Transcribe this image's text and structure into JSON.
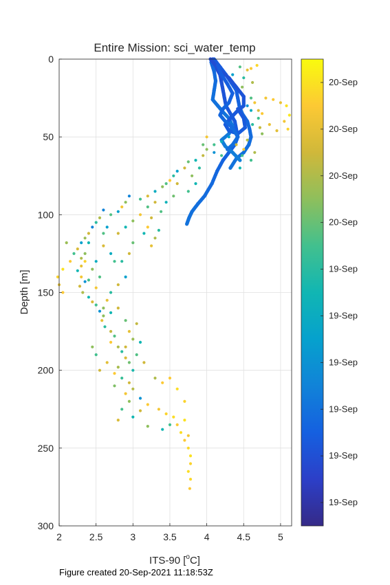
{
  "figure_footer": "Figure created 20-Sep-2021 11:18:53Z",
  "chart_data": {
    "type": "scatter",
    "title": "Entire Mission: sci_water_temp",
    "xlabel": "ITS-90 [",
    "xlabel_sup": "o",
    "xlabel_suffix": "C]",
    "ylabel": "Depth [m]",
    "xlim": [
      2,
      5.15
    ],
    "ylim": [
      300,
      0
    ],
    "y_reversed": true,
    "x_ticks": [
      2,
      2.5,
      3,
      3.5,
      4,
      4.5,
      5
    ],
    "x_tick_labels": [
      "2",
      "2.5",
      "3",
      "3.5",
      "4",
      "4.5",
      "5"
    ],
    "y_ticks": [
      0,
      50,
      100,
      150,
      200,
      250,
      300
    ],
    "y_tick_labels": [
      "0",
      "50",
      "100",
      "150",
      "200",
      "250",
      "300"
    ],
    "grid": true,
    "colormap": "parula",
    "colorbar": {
      "ticks": [
        0.05,
        0.15,
        0.25,
        0.35,
        0.45,
        0.55,
        0.65,
        0.75,
        0.85,
        0.95
      ],
      "tick_labels": [
        "19-Sep",
        "19-Sep",
        "19-Sep",
        "19-Sep",
        "19-Sep",
        "19-Sep",
        "20-Sep",
        "20-Sep",
        "20-Sep",
        "20-Sep"
      ]
    },
    "profile_segments": [
      [
        [
          4.08,
          0
        ],
        [
          4.12,
          5
        ],
        [
          4.18,
          10
        ],
        [
          4.2,
          15
        ],
        [
          4.22,
          20
        ],
        [
          4.24,
          25
        ],
        [
          4.26,
          30
        ],
        [
          4.32,
          35
        ],
        [
          4.38,
          40
        ],
        [
          4.4,
          45
        ],
        [
          4.42,
          50
        ],
        [
          4.38,
          55
        ],
        [
          4.3,
          60
        ],
        [
          4.22,
          65
        ],
        [
          4.14,
          72
        ],
        [
          4.07,
          80
        ],
        [
          3.97,
          88
        ],
        [
          3.88,
          93
        ],
        [
          3.8,
          98
        ],
        [
          3.76,
          102
        ],
        [
          3.73,
          106
        ]
      ],
      [
        [
          4.1,
          0
        ],
        [
          4.18,
          5
        ],
        [
          4.26,
          10
        ],
        [
          4.33,
          15
        ],
        [
          4.4,
          20
        ],
        [
          4.42,
          25
        ],
        [
          4.44,
          30
        ],
        [
          4.48,
          35
        ],
        [
          4.55,
          40
        ],
        [
          4.58,
          45
        ],
        [
          4.6,
          50
        ],
        [
          4.57,
          55
        ],
        [
          4.5,
          60
        ],
        [
          4.4,
          64
        ],
        [
          4.32,
          70
        ]
      ],
      [
        [
          4.06,
          2
        ],
        [
          4.1,
          8
        ],
        [
          4.12,
          14
        ],
        [
          4.1,
          20
        ],
        [
          4.08,
          26
        ],
        [
          4.15,
          30
        ],
        [
          4.22,
          34
        ],
        [
          4.3,
          38
        ],
        [
          4.35,
          43
        ],
        [
          4.3,
          48
        ],
        [
          4.2,
          52
        ],
        [
          4.25,
          56
        ],
        [
          4.35,
          60
        ],
        [
          4.45,
          65
        ]
      ],
      [
        [
          4.05,
          0
        ],
        [
          4.15,
          6
        ],
        [
          4.3,
          12
        ],
        [
          4.4,
          18
        ],
        [
          4.5,
          24
        ],
        [
          4.5,
          30
        ],
        [
          4.4,
          34
        ],
        [
          4.32,
          38
        ],
        [
          4.25,
          42
        ],
        [
          4.3,
          46
        ],
        [
          4.42,
          48
        ],
        [
          4.52,
          44
        ],
        [
          4.5,
          38
        ],
        [
          4.42,
          32
        ]
      ],
      [
        [
          4.15,
          4
        ],
        [
          4.2,
          10
        ],
        [
          4.28,
          16
        ],
        [
          4.35,
          22
        ],
        [
          4.3,
          28
        ],
        [
          4.22,
          32
        ],
        [
          4.18,
          36
        ],
        [
          4.25,
          40
        ],
        [
          4.35,
          44
        ],
        [
          4.42,
          50
        ],
        [
          4.35,
          55
        ],
        [
          4.28,
          58
        ]
      ]
    ],
    "scatter_points": [
      [
        4.45,
        5,
        0.62
      ],
      [
        4.55,
        7,
        0.85
      ],
      [
        4.6,
        6,
        0.9
      ],
      [
        4.68,
        4,
        0.93
      ],
      [
        4.35,
        10,
        0.4
      ],
      [
        4.5,
        12,
        0.55
      ],
      [
        4.62,
        15,
        0.75
      ],
      [
        4.48,
        18,
        0.7
      ],
      [
        4.8,
        25,
        0.88
      ],
      [
        4.9,
        26,
        0.9
      ],
      [
        5.0,
        28,
        0.86
      ],
      [
        5.08,
        30,
        0.95
      ],
      [
        5.12,
        36,
        0.96
      ],
      [
        5.05,
        40,
        0.88
      ],
      [
        5.1,
        45,
        0.92
      ],
      [
        4.95,
        46,
        0.84
      ],
      [
        4.7,
        38,
        0.6
      ],
      [
        4.62,
        42,
        0.55
      ],
      [
        4.72,
        44,
        0.78
      ],
      [
        4.55,
        30,
        0.35
      ],
      [
        4.6,
        33,
        0.45
      ],
      [
        4.3,
        50,
        0.4
      ],
      [
        4.2,
        53,
        0.45
      ],
      [
        4.1,
        55,
        0.6
      ],
      [
        4.0,
        58,
        0.7
      ],
      [
        3.95,
        62,
        0.78
      ],
      [
        3.85,
        65,
        0.5
      ],
      [
        3.75,
        66,
        0.65
      ],
      [
        3.7,
        70,
        0.8
      ],
      [
        3.6,
        72,
        0.4
      ],
      [
        3.55,
        75,
        0.55
      ],
      [
        3.5,
        78,
        0.9
      ],
      [
        3.45,
        80,
        0.62
      ],
      [
        3.4,
        82,
        0.7
      ],
      [
        3.3,
        85,
        0.45
      ],
      [
        3.2,
        88,
        0.82
      ],
      [
        3.1,
        90,
        0.6
      ],
      [
        2.95,
        88,
        0.3
      ],
      [
        2.9,
        92,
        0.7
      ],
      [
        2.85,
        95,
        0.88
      ],
      [
        2.8,
        98,
        0.4
      ],
      [
        2.7,
        100,
        0.62
      ],
      [
        2.6,
        97,
        0.3
      ],
      [
        2.55,
        102,
        0.75
      ],
      [
        2.5,
        105,
        0.55
      ],
      [
        2.45,
        108,
        0.3
      ],
      [
        2.4,
        112,
        0.8
      ],
      [
        2.35,
        115,
        0.72
      ],
      [
        2.3,
        118,
        0.4
      ],
      [
        2.25,
        122,
        0.82
      ],
      [
        2.2,
        125,
        0.6
      ],
      [
        2.3,
        128,
        0.75
      ],
      [
        2.35,
        130,
        0.92
      ],
      [
        2.3,
        133,
        0.85
      ],
      [
        2.25,
        136,
        0.5
      ],
      [
        2.3,
        140,
        0.88
      ],
      [
        2.35,
        143,
        0.35
      ],
      [
        2.28,
        146,
        0.8
      ],
      [
        2.32,
        150,
        0.75
      ],
      [
        2.4,
        153,
        0.5
      ],
      [
        2.45,
        156,
        0.82
      ],
      [
        2.5,
        158,
        0.6
      ],
      [
        2.55,
        162,
        0.35
      ],
      [
        2.6,
        165,
        0.7
      ],
      [
        2.58,
        168,
        0.85
      ],
      [
        2.62,
        172,
        0.55
      ],
      [
        2.7,
        175,
        0.78
      ],
      [
        2.75,
        178,
        0.62
      ],
      [
        2.7,
        182,
        0.9
      ],
      [
        2.8,
        185,
        0.75
      ],
      [
        2.85,
        188,
        0.55
      ],
      [
        2.9,
        192,
        0.82
      ],
      [
        2.95,
        195,
        0.66
      ],
      [
        2.8,
        198,
        0.74
      ],
      [
        2.75,
        202,
        0.9
      ],
      [
        2.85,
        205,
        0.58
      ],
      [
        2.95,
        208,
        0.8
      ],
      [
        3.0,
        212,
        0.76
      ],
      [
        2.9,
        215,
        0.88
      ],
      [
        2.95,
        220,
        0.7
      ],
      [
        3.1,
        218,
        0.35
      ],
      [
        3.2,
        222,
        0.9
      ],
      [
        3.35,
        225,
        0.88
      ],
      [
        3.45,
        228,
        0.92
      ],
      [
        3.55,
        230,
        0.94
      ],
      [
        3.6,
        235,
        0.9
      ],
      [
        3.65,
        240,
        0.94
      ],
      [
        3.7,
        245,
        0.9
      ],
      [
        3.75,
        250,
        0.93
      ],
      [
        3.78,
        255,
        0.95
      ],
      [
        3.78,
        260,
        0.92
      ],
      [
        3.75,
        265,
        0.94
      ],
      [
        3.78,
        270,
        0.93
      ],
      [
        3.77,
        276,
        0.9
      ],
      [
        3.75,
        242,
        0.88
      ],
      [
        3.7,
        232,
        0.95
      ],
      [
        3.5,
        235,
        0.6
      ],
      [
        3.4,
        238,
        0.5
      ],
      [
        3.05,
        170,
        0.78
      ],
      [
        3.1,
        182,
        0.5
      ],
      [
        3.15,
        195,
        0.8
      ],
      [
        3.0,
        200,
        0.52
      ],
      [
        2.6,
        120,
        0.82
      ],
      [
        2.7,
        125,
        0.45
      ],
      [
        2.75,
        130,
        0.6
      ],
      [
        2.8,
        112,
        0.8
      ],
      [
        2.9,
        108,
        0.5
      ],
      [
        3.0,
        104,
        0.7
      ],
      [
        3.1,
        100,
        0.88
      ],
      [
        3.2,
        95,
        0.62
      ],
      [
        3.3,
        92,
        0.8
      ],
      [
        3.35,
        110,
        0.55
      ],
      [
        3.3,
        115,
        0.75
      ],
      [
        3.25,
        120,
        0.85
      ],
      [
        2.9,
        140,
        0.4
      ],
      [
        2.8,
        145,
        0.8
      ],
      [
        2.7,
        150,
        0.55
      ],
      [
        2.65,
        155,
        0.85
      ],
      [
        2.55,
        140,
        0.62
      ],
      [
        2.45,
        135,
        0.7
      ],
      [
        2.5,
        130,
        0.45
      ],
      [
        2.15,
        130,
        0.9
      ],
      [
        2.05,
        135,
        0.95
      ],
      [
        1.98,
        140,
        0.92
      ],
      [
        2.1,
        118,
        0.72
      ],
      [
        2.05,
        150,
        0.9
      ],
      [
        2.0,
        145,
        0.85
      ],
      [
        2.45,
        185,
        0.7
      ],
      [
        2.5,
        190,
        0.6
      ],
      [
        2.65,
        195,
        0.84
      ],
      [
        2.55,
        200,
        0.8
      ],
      [
        2.75,
        210,
        0.68
      ],
      [
        2.85,
        225,
        0.6
      ],
      [
        2.8,
        232,
        0.82
      ],
      [
        3.0,
        230,
        0.5
      ],
      [
        3.1,
        226,
        0.8
      ],
      [
        3.2,
        236,
        0.7
      ],
      [
        3.5,
        205,
        0.9
      ],
      [
        3.6,
        212,
        0.94
      ],
      [
        3.7,
        220,
        0.92
      ],
      [
        3.3,
        205,
        0.75
      ],
      [
        3.4,
        208,
        0.9
      ],
      [
        3.9,
        70,
        0.55
      ],
      [
        3.8,
        75,
        0.7
      ],
      [
        3.85,
        80,
        0.5
      ],
      [
        3.75,
        85,
        0.6
      ],
      [
        4.1,
        60,
        0.35
      ],
      [
        4.2,
        62,
        0.6
      ],
      [
        4.4,
        55,
        0.8
      ],
      [
        4.5,
        58,
        0.9
      ],
      [
        4.55,
        52,
        0.75
      ],
      [
        4.48,
        62,
        0.6
      ],
      [
        4.0,
        50,
        0.88
      ],
      [
        3.95,
        55,
        0.65
      ],
      [
        3.6,
        80,
        0.8
      ],
      [
        3.55,
        88,
        0.66
      ],
      [
        3.45,
        92,
        0.48
      ],
      [
        3.38,
        98,
        0.62
      ],
      [
        3.25,
        102,
        0.8
      ],
      [
        3.2,
        108,
        0.9
      ],
      [
        3.15,
        112,
        0.5
      ],
      [
        3.0,
        118,
        0.65
      ],
      [
        2.95,
        125,
        0.8
      ],
      [
        2.85,
        130,
        0.55
      ],
      [
        2.65,
        108,
        0.4
      ],
      [
        2.6,
        112,
        0.62
      ],
      [
        2.4,
        118,
        0.5
      ],
      [
        2.35,
        125,
        0.7
      ],
      [
        2.4,
        142,
        0.6
      ],
      [
        2.5,
        147,
        0.88
      ],
      [
        2.6,
        160,
        0.7
      ],
      [
        2.7,
        163,
        0.5
      ],
      [
        2.8,
        160,
        0.8
      ],
      [
        2.9,
        168,
        0.65
      ],
      [
        2.95,
        175,
        0.85
      ],
      [
        3.0,
        180,
        0.72
      ],
      [
        2.9,
        185,
        0.8
      ],
      [
        3.05,
        190,
        0.62
      ],
      [
        4.6,
        25,
        0.62
      ],
      [
        4.65,
        28,
        0.88
      ],
      [
        4.7,
        33,
        0.82
      ],
      [
        4.75,
        35,
        0.9
      ],
      [
        4.85,
        42,
        0.86
      ],
      [
        4.75,
        48,
        0.7
      ],
      [
        4.65,
        60,
        0.75
      ],
      [
        4.6,
        65,
        0.6
      ],
      [
        4.45,
        70,
        0.5
      ]
    ]
  }
}
